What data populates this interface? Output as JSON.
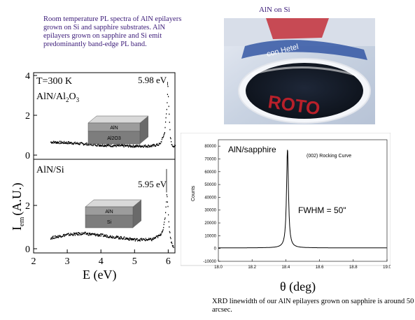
{
  "captions": {
    "top": "Room temperature PL spectra of AlN epilayers grown on Si and sapphire substrates. AlN epilayers grown on sapphire and Si emit predominantly band-edge PL band.",
    "wafer_title": "AlN on Si",
    "bottom": "XRD linewidth of our AlN epilayers grown on sapphire is around 50 arcsec."
  },
  "photo": {
    "label_a": "ROTO",
    "label_b": "con Hetel"
  },
  "chart_data": [
    {
      "type": "line",
      "ylabel_main": "I",
      "ylabel_sub": "em",
      "ylabel_rest": "(A.U.)",
      "xlabel": "E (eV)",
      "xlim": [
        2,
        6.2
      ],
      "x_ticks": [
        2,
        3,
        4,
        5,
        6
      ],
      "x_tick_labels": [
        "2",
        "3",
        "4",
        "5",
        "6"
      ],
      "panels": [
        {
          "temp_label": "T=300 K",
          "sample_label_main": "AlN/Al",
          "sample_label_sub1": "2",
          "sample_label_mid": "O",
          "sample_label_sub2": "3",
          "peak_label": "5.98 eV",
          "peak": 5.98,
          "ylim": [
            0,
            4
          ],
          "y_ticks": [
            0,
            2,
            4
          ],
          "y_tick_labels": [
            "0",
            "2",
            "4"
          ],
          "layer_top": "AlN",
          "layer_bottom": "Al2O3",
          "baseline": [
            [
              2.5,
              0.65
            ],
            [
              3.0,
              0.62
            ],
            [
              3.5,
              0.56
            ],
            [
              4.0,
              0.5
            ],
            [
              4.5,
              0.47
            ],
            [
              5.0,
              0.45
            ],
            [
              5.5,
              0.46
            ],
            [
              5.75,
              0.55
            ],
            [
              5.88,
              1.1
            ],
            [
              5.95,
              2.4
            ],
            [
              5.98,
              3.5
            ],
            [
              6.01,
              2.2
            ],
            [
              6.05,
              0.9
            ],
            [
              6.1,
              0.48
            ],
            [
              6.2,
              0.44
            ]
          ]
        },
        {
          "sample_label": "AlN/Si",
          "peak_label": "5.95 eV",
          "peak": 5.95,
          "ylim": [
            0,
            4
          ],
          "y_ticks": [
            0,
            2
          ],
          "y_tick_labels": [
            "0",
            "2"
          ],
          "layer_top": "AlN",
          "layer_bottom": "Si",
          "baseline": [
            [
              2.5,
              0.5
            ],
            [
              3.0,
              0.65
            ],
            [
              3.5,
              0.7
            ],
            [
              4.0,
              0.62
            ],
            [
              4.5,
              0.52
            ],
            [
              5.0,
              0.42
            ],
            [
              5.5,
              0.42
            ],
            [
              5.75,
              0.62
            ],
            [
              5.85,
              0.95
            ],
            [
              5.9,
              1.5
            ],
            [
              5.95,
              2.6
            ],
            [
              5.98,
              1.9
            ],
            [
              6.02,
              0.9
            ],
            [
              6.08,
              0.3
            ],
            [
              6.15,
              0.05
            ]
          ]
        }
      ]
    },
    {
      "type": "line",
      "label": "AlN/sapphire",
      "annotation": "(002) Rocking Curve",
      "fwhm_label": "FWHM = 50\"",
      "ylabel": "Counts",
      "xlabel": "θ (deg)",
      "xlim": [
        18.0,
        19.0
      ],
      "ylim": [
        -10000,
        85000
      ],
      "x_ticks": [
        18.0,
        18.2,
        18.4,
        18.6,
        18.8,
        19.0
      ],
      "x_tick_labels": [
        "18.0",
        "18.2",
        "18.4",
        "18.6",
        "18.8",
        "19.0"
      ],
      "y_ticks": [
        -10000,
        0,
        10000,
        20000,
        30000,
        40000,
        50000,
        60000,
        70000,
        80000
      ],
      "y_tick_labels": [
        "-10000",
        "0",
        "10000",
        "20000",
        "30000",
        "40000",
        "50000",
        "60000",
        "70000",
        "80000"
      ],
      "peak": 18.41,
      "peak_height": 77000,
      "fwhm_deg": 0.0139,
      "background": 500
    }
  ]
}
